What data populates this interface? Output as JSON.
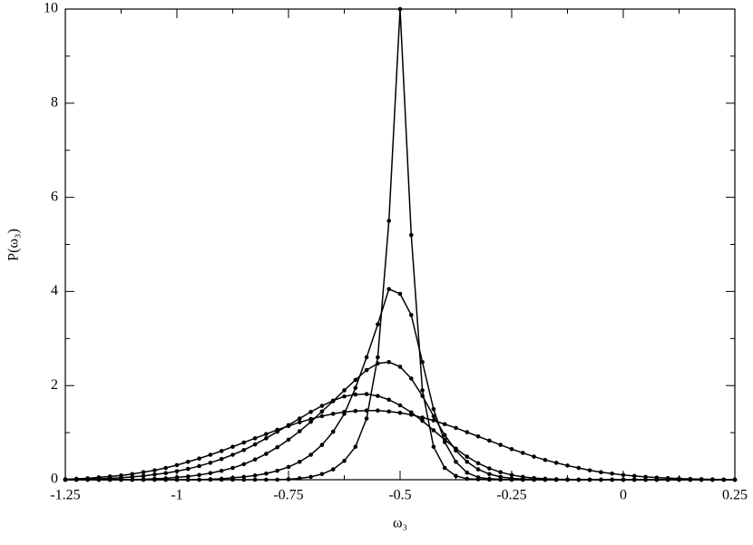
{
  "chart_data": {
    "type": "line",
    "xlabel": "ω₃",
    "ylabel": "P(ω₃)",
    "xlim": [
      -1.25,
      0.25
    ],
    "ylim": [
      0,
      10
    ],
    "xticks": [
      -1.25,
      -1,
      -0.75,
      -0.5,
      -0.25,
      0,
      0.25
    ],
    "yticks": [
      0,
      2,
      4,
      6,
      8,
      10
    ],
    "markers": true,
    "x": [
      -1.25,
      -1.225,
      -1.2,
      -1.175,
      -1.15,
      -1.125,
      -1.1,
      -1.075,
      -1.05,
      -1.025,
      -1,
      -0.975,
      -0.95,
      -0.925,
      -0.9,
      -0.875,
      -0.85,
      -0.825,
      -0.8,
      -0.775,
      -0.75,
      -0.725,
      -0.7,
      -0.675,
      -0.65,
      -0.625,
      -0.6,
      -0.575,
      -0.55,
      -0.525,
      -0.5,
      -0.475,
      -0.45,
      -0.425,
      -0.4,
      -0.375,
      -0.35,
      -0.325,
      -0.3,
      -0.275,
      -0.25,
      -0.225,
      -0.2,
      -0.175,
      -0.15,
      -0.125,
      -0.1,
      -0.075,
      -0.05,
      -0.025,
      0,
      0.025,
      0.05,
      0.075,
      0.1,
      0.125,
      0.15,
      0.175,
      0.2,
      0.225,
      0.25
    ],
    "series": [
      {
        "color": "#000000",
        "values": [
          0,
          0,
          0,
          0,
          0,
          0,
          0,
          0,
          0,
          0,
          0,
          0,
          0,
          0,
          0,
          0,
          0,
          0,
          0,
          0,
          0.01,
          0.03,
          0.06,
          0.12,
          0.22,
          0.4,
          0.7,
          1.3,
          2.6,
          5.5,
          10,
          5.2,
          1.9,
          0.7,
          0.25,
          0.08,
          0.02,
          0.01,
          0,
          0,
          0,
          0,
          0,
          0,
          0,
          0,
          0,
          0,
          0,
          0,
          0,
          0,
          0,
          0,
          0,
          0,
          0,
          0,
          0,
          0,
          0
        ]
      },
      {
        "color": "#000000",
        "values": [
          0,
          0,
          0,
          0,
          0,
          0,
          0,
          0,
          0,
          0,
          0,
          0,
          0,
          0.01,
          0.02,
          0.04,
          0.06,
          0.09,
          0.13,
          0.19,
          0.27,
          0.38,
          0.53,
          0.74,
          1.02,
          1.4,
          1.95,
          2.6,
          3.3,
          4.05,
          3.95,
          3.5,
          2.5,
          1.5,
          0.8,
          0.38,
          0.15,
          0.05,
          0.02,
          0.01,
          0,
          0,
          0,
          0,
          0,
          0,
          0,
          0,
          0,
          0,
          0,
          0,
          0,
          0,
          0,
          0,
          0,
          0,
          0,
          0,
          0
        ]
      },
      {
        "color": "#000000",
        "values": [
          0,
          0,
          0,
          0,
          0,
          0,
          0,
          0.01,
          0.02,
          0.03,
          0.05,
          0.07,
          0.1,
          0.14,
          0.19,
          0.25,
          0.33,
          0.43,
          0.55,
          0.69,
          0.85,
          1.03,
          1.23,
          1.45,
          1.67,
          1.9,
          2.12,
          2.33,
          2.47,
          2.5,
          2.4,
          2.15,
          1.78,
          1.35,
          0.95,
          0.62,
          0.38,
          0.22,
          0.12,
          0.06,
          0.03,
          0.015,
          0.01,
          0,
          0,
          0,
          0,
          0,
          0,
          0,
          0,
          0,
          0,
          0,
          0,
          0,
          0,
          0,
          0,
          0,
          0
        ]
      },
      {
        "color": "#000000",
        "values": [
          0,
          0.005,
          0.01,
          0.02,
          0.03,
          0.04,
          0.06,
          0.08,
          0.11,
          0.14,
          0.18,
          0.23,
          0.29,
          0.36,
          0.44,
          0.53,
          0.63,
          0.75,
          0.88,
          1.02,
          1.16,
          1.3,
          1.44,
          1.57,
          1.68,
          1.77,
          1.81,
          1.82,
          1.78,
          1.7,
          1.58,
          1.43,
          1.25,
          1.05,
          0.85,
          0.66,
          0.49,
          0.35,
          0.24,
          0.16,
          0.1,
          0.06,
          0.035,
          0.02,
          0.01,
          0.005,
          0,
          0,
          0,
          0,
          0,
          0,
          0,
          0,
          0,
          0,
          0,
          0,
          0,
          0,
          0
        ]
      },
      {
        "color": "#000000",
        "values": [
          0.01,
          0.02,
          0.03,
          0.05,
          0.07,
          0.09,
          0.12,
          0.16,
          0.2,
          0.25,
          0.31,
          0.38,
          0.45,
          0.53,
          0.61,
          0.7,
          0.79,
          0.88,
          0.97,
          1.06,
          1.14,
          1.22,
          1.29,
          1.35,
          1.4,
          1.44,
          1.46,
          1.47,
          1.47,
          1.45,
          1.42,
          1.38,
          1.32,
          1.26,
          1.18,
          1.1,
          1.01,
          0.92,
          0.83,
          0.74,
          0.65,
          0.57,
          0.49,
          0.42,
          0.36,
          0.3,
          0.25,
          0.2,
          0.16,
          0.13,
          0.1,
          0.08,
          0.06,
          0.045,
          0.033,
          0.024,
          0.017,
          0.012,
          0.008,
          0.005,
          0.003
        ]
      }
    ]
  }
}
